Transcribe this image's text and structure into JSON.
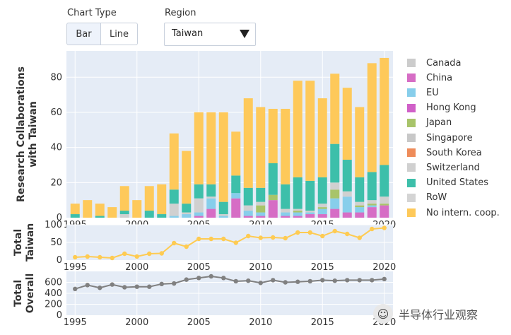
{
  "controls": {
    "chart_type_label": "Chart Type",
    "bar_label": "Bar",
    "line_label": "Line",
    "region_label": "Region",
    "region_value": "Taiwan"
  },
  "watermark": "半导体行业观察",
  "colors": {
    "panel_bg": "#e5ecf6",
    "total_line": "#fecb52",
    "overall_line": "#808080"
  },
  "chart_data": [
    {
      "type": "bar",
      "stacked": true,
      "ylabel": "Research Collaborations\nwith Taiwan",
      "xlim": [
        1994.3,
        2020.7
      ],
      "ylim": [
        0,
        95
      ],
      "yticks": [
        0,
        20,
        40,
        60,
        80
      ],
      "xticks": [
        1995,
        2000,
        2005,
        2010,
        2015,
        2020
      ],
      "legend_position": "right",
      "x": [
        1995,
        1996,
        1997,
        1998,
        1999,
        2000,
        2001,
        2002,
        2003,
        2004,
        2005,
        2006,
        2007,
        2008,
        2009,
        2010,
        2011,
        2012,
        2013,
        2014,
        2015,
        2016,
        2017,
        2018,
        2019,
        2020
      ],
      "series": [
        {
          "name": "Canada",
          "color": "#cccccc",
          "values": [
            0,
            0,
            0,
            0,
            0,
            0,
            0,
            0,
            0,
            0,
            0,
            0,
            0,
            0,
            0,
            0,
            0,
            0,
            0,
            0,
            0,
            0,
            0,
            0,
            0,
            0
          ]
        },
        {
          "name": "China",
          "color": "#d66dc5",
          "values": [
            0,
            0,
            0,
            0,
            0,
            0,
            0,
            0,
            0,
            0,
            1,
            5,
            0,
            11,
            1,
            1,
            10,
            1,
            1,
            2,
            2,
            5,
            3,
            3,
            6,
            7
          ]
        },
        {
          "name": "EU",
          "color": "#87ceeb",
          "values": [
            0,
            0,
            0,
            0,
            0,
            0,
            0,
            0,
            1,
            2,
            2,
            6,
            1,
            3,
            3,
            2,
            0,
            2,
            2,
            1,
            3,
            6,
            9,
            3,
            1,
            0
          ]
        },
        {
          "name": "Hong Kong",
          "color": "#d060c8",
          "values": [
            0,
            0,
            0,
            0,
            0,
            0,
            0,
            0,
            0,
            0,
            0,
            0,
            0,
            0,
            0,
            0,
            0,
            0,
            0,
            0,
            0,
            0,
            0,
            0,
            0,
            0
          ]
        },
        {
          "name": "Japan",
          "color": "#a8c46a",
          "values": [
            0,
            0,
            0,
            0,
            0,
            0,
            0,
            0,
            0,
            0,
            0,
            0,
            0,
            0,
            0,
            4,
            3,
            0,
            1,
            0,
            1,
            5,
            0,
            1,
            1,
            1
          ]
        },
        {
          "name": "Singapore",
          "color": "#c8c8c8",
          "values": [
            0,
            0,
            0,
            0,
            0,
            0,
            0,
            0,
            0,
            0,
            0,
            0,
            0,
            0,
            0,
            0,
            0,
            0,
            0,
            0,
            0,
            0,
            0,
            0,
            0,
            0
          ]
        },
        {
          "name": "South Korea",
          "color": "#ee8c5a",
          "values": [
            0,
            0,
            0,
            0,
            0,
            0,
            0,
            0,
            0,
            0,
            0,
            0,
            0,
            0,
            0,
            0,
            0,
            0,
            0,
            0,
            0,
            0,
            0,
            0,
            0,
            0
          ]
        },
        {
          "name": "Switzerland",
          "color": "#d0d0d0",
          "values": [
            0,
            0,
            0,
            0,
            2,
            0,
            0,
            0,
            7,
            1,
            8,
            1,
            1,
            0,
            3,
            2,
            0,
            2,
            1,
            1,
            2,
            4,
            3,
            2,
            2,
            4
          ]
        },
        {
          "name": "United States",
          "color": "#3dbfaa",
          "values": [
            2,
            0,
            1,
            0,
            2,
            0,
            4,
            2,
            8,
            5,
            8,
            7,
            7,
            10,
            10,
            8,
            18,
            14,
            18,
            17,
            15,
            22,
            18,
            14,
            16,
            18
          ]
        },
        {
          "name": "RoW",
          "color": "#d4d4d4",
          "values": [
            0,
            0,
            0,
            0,
            0,
            0,
            0,
            0,
            0,
            0,
            0,
            0,
            0,
            0,
            0,
            0,
            0,
            0,
            0,
            0,
            0,
            0,
            0,
            0,
            0,
            0
          ]
        },
        {
          "name": "No intern. coop.",
          "color": "#fec95a",
          "values": [
            6,
            10,
            7,
            6,
            14,
            10,
            14,
            17,
            32,
            30,
            41,
            41,
            51,
            25,
            51,
            46,
            31,
            43,
            55,
            57,
            45,
            40,
            41,
            40,
            62,
            61
          ]
        }
      ]
    },
    {
      "type": "line",
      "ylabel": "Total\nTaiwan",
      "xlim": [
        1994.3,
        2020.7
      ],
      "ylim": [
        0,
        100
      ],
      "yticks": [
        0,
        50,
        100
      ],
      "xticks": [
        1995,
        2000,
        2005,
        2010,
        2015,
        2020
      ],
      "x": [
        1995,
        1996,
        1997,
        1998,
        1999,
        2000,
        2001,
        2002,
        2003,
        2004,
        2005,
        2006,
        2007,
        2008,
        2009,
        2010,
        2011,
        2012,
        2013,
        2014,
        2015,
        2016,
        2017,
        2018,
        2019,
        2020
      ],
      "values": [
        8,
        10,
        8,
        6,
        18,
        10,
        18,
        19,
        48,
        38,
        60,
        60,
        60,
        49,
        68,
        63,
        64,
        62,
        78,
        78,
        68,
        82,
        74,
        63,
        88,
        91
      ]
    },
    {
      "type": "line",
      "ylabel": "Total\nOverall",
      "xlim": [
        1994.3,
        2020.7
      ],
      "ylim": [
        0,
        800
      ],
      "yticks": [
        0,
        200,
        400,
        600
      ],
      "xticks": [
        1995,
        2000,
        2005,
        2010,
        2015,
        2020
      ],
      "x": [
        1995,
        1996,
        1997,
        1998,
        1999,
        2000,
        2001,
        2002,
        2003,
        2004,
        2005,
        2006,
        2007,
        2008,
        2009,
        2010,
        2011,
        2012,
        2013,
        2014,
        2015,
        2016,
        2017,
        2018,
        2019,
        2020
      ],
      "values": [
        480,
        550,
        500,
        560,
        510,
        520,
        520,
        570,
        580,
        650,
        680,
        710,
        680,
        620,
        630,
        590,
        640,
        600,
        610,
        620,
        640,
        630,
        640,
        640,
        640,
        660
      ]
    }
  ]
}
